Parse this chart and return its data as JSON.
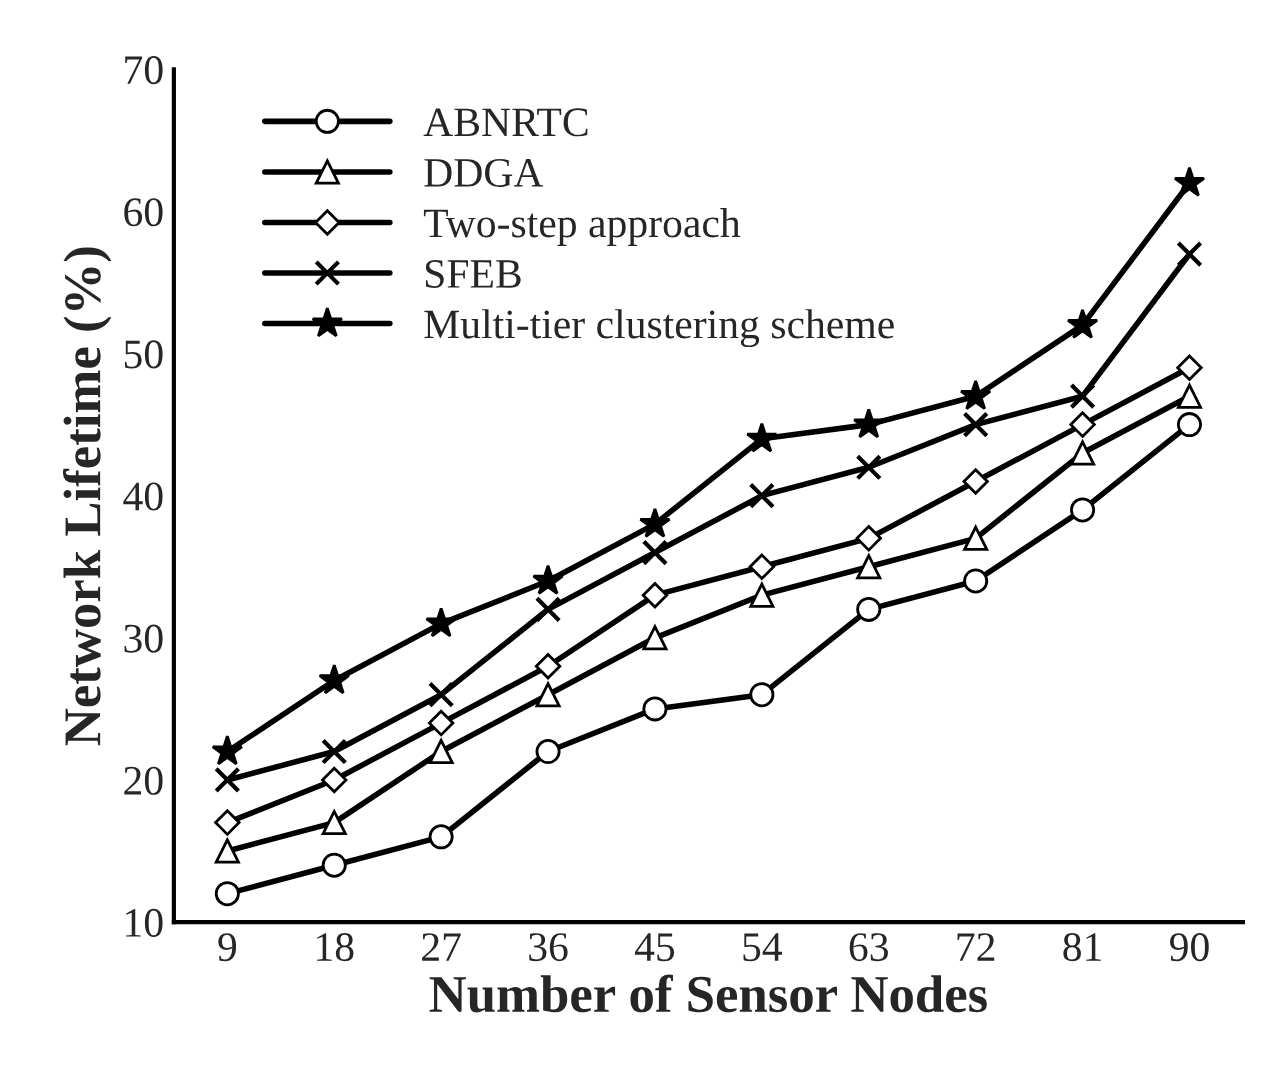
{
  "chart_data": {
    "type": "line",
    "xlabel": "Number of Sensor Nodes",
    "ylabel": "Network Lifetime (%)",
    "categories": [
      "9",
      "18",
      "27",
      "36",
      "45",
      "54",
      "63",
      "72",
      "81",
      "90"
    ],
    "series": [
      {
        "name": "ABNRTC",
        "color": "#000000",
        "marker": "circle",
        "values": [
          12,
          14,
          16,
          22,
          25,
          26,
          32,
          34,
          39,
          45
        ]
      },
      {
        "name": "DDGA",
        "color": "#000000",
        "marker": "triangle",
        "values": [
          15,
          17,
          22,
          26,
          30,
          33,
          35,
          37,
          43,
          47
        ]
      },
      {
        "name": "Two-step approach",
        "color": "#000000",
        "marker": "diamond",
        "values": [
          17,
          20,
          24,
          28,
          33,
          35,
          37,
          41,
          45,
          49
        ]
      },
      {
        "name": "SFEB",
        "color": "#000000",
        "marker": "cross",
        "values": [
          20,
          22,
          26,
          32,
          36,
          40,
          42,
          45,
          47,
          57
        ]
      },
      {
        "name": "Multi-tier clustering scheme",
        "color": "#000000",
        "marker": "star",
        "values": [
          22,
          27,
          31,
          34,
          38,
          44,
          45,
          47,
          52,
          62
        ]
      }
    ],
    "ylim": [
      10,
      70
    ],
    "yticks": [
      10,
      20,
      30,
      40,
      50,
      60,
      70
    ],
    "grid": false,
    "legend": "top left",
    "line_style": "solid"
  }
}
